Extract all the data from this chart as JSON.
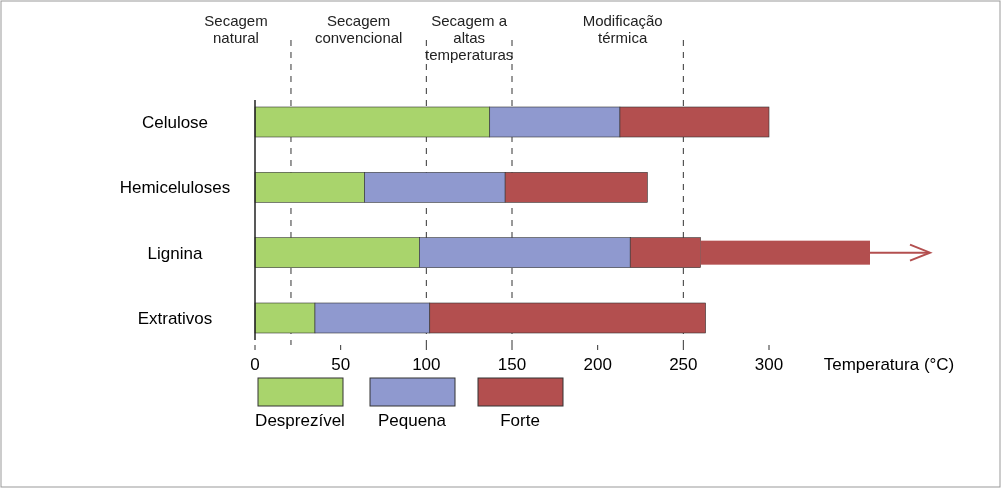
{
  "chart_data": {
    "type": "bar",
    "orientation": "horizontal",
    "stacked": true,
    "xlabel": "Temperatura (°C)",
    "categories": [
      "Celulose",
      "Hemiceluloses",
      "Lignina",
      "Extrativos"
    ],
    "series": [
      {
        "name": "Desprezível",
        "color": "#a9d46c",
        "values": [
          137,
          64,
          96,
          35
        ]
      },
      {
        "name": "Pequena",
        "color": "#8f99cf",
        "values": [
          76,
          82,
          123,
          67
        ]
      },
      {
        "name": "Forte",
        "color": "#b34f4f",
        "values": [
          87,
          83,
          41,
          161
        ]
      }
    ],
    "xlim": [
      0,
      300
    ],
    "xticks": [
      0,
      50,
      100,
      150,
      200,
      250,
      300
    ],
    "ref_lines": [
      {
        "axis": "x",
        "value": 21,
        "line_style": "dashed"
      },
      {
        "axis": "x",
        "value": 100,
        "line_style": "dashed"
      },
      {
        "axis": "x",
        "value": 150,
        "line_style": "dashed"
      },
      {
        "axis": "x",
        "value": 250,
        "line_style": "dashed"
      }
    ],
    "annotations": [
      "Secagem natural",
      "Secagem convencional",
      "Secagem a altas temperaturas",
      "Modificação térmica"
    ],
    "legend": "bottom"
  }
}
